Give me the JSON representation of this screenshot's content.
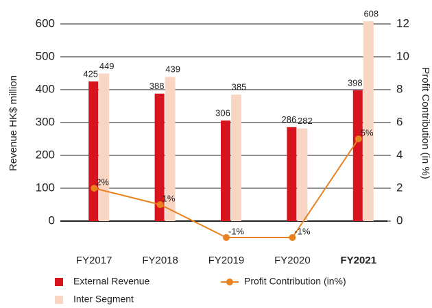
{
  "chart_data": {
    "type": "bar_line",
    "categories": [
      "FY2017",
      "FY2018",
      "FY2019",
      "FY2020",
      "FY2021"
    ],
    "bold_categories": [
      false,
      false,
      false,
      false,
      true
    ],
    "series": [
      {
        "name": "External Revenue",
        "type": "bar",
        "color": "#d7141e",
        "values": [
          425,
          388,
          306,
          286,
          398
        ]
      },
      {
        "name": "Inter Segment",
        "type": "bar",
        "color": "#f9d5c4",
        "values": [
          449,
          439,
          385,
          282,
          608
        ]
      },
      {
        "name": "Profit Contribution (in%)",
        "type": "line",
        "axis": "y2",
        "color": "#e8821e",
        "values": [
          2,
          1,
          -1,
          -1,
          5
        ],
        "value_labels": [
          "2%",
          "1%",
          "-1%",
          "-1%",
          "5%"
        ]
      }
    ],
    "ylabel": "Revenue HK$ million",
    "y2label": "Profit Contribution (in %)",
    "ylim": [
      0,
      600
    ],
    "yticks": [
      0,
      100,
      200,
      300,
      400,
      500,
      600
    ],
    "y2lim": [
      0,
      12
    ],
    "y2ticks": [
      0,
      2,
      4,
      6,
      8,
      10,
      12
    ],
    "grid": true
  }
}
